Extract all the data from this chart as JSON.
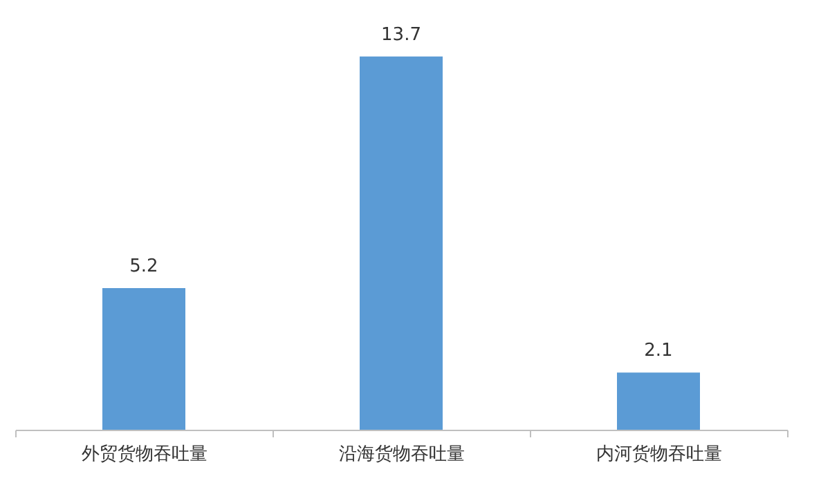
{
  "chart_data": {
    "type": "bar",
    "categories": [
      "外贸货物吞吐量",
      "沿海货物吞吐量",
      "内河货物吞吐量"
    ],
    "values": [
      5.2,
      13.7,
      2.1
    ],
    "color": "#5b9bd5",
    "data_labels": true,
    "grid": false
  }
}
